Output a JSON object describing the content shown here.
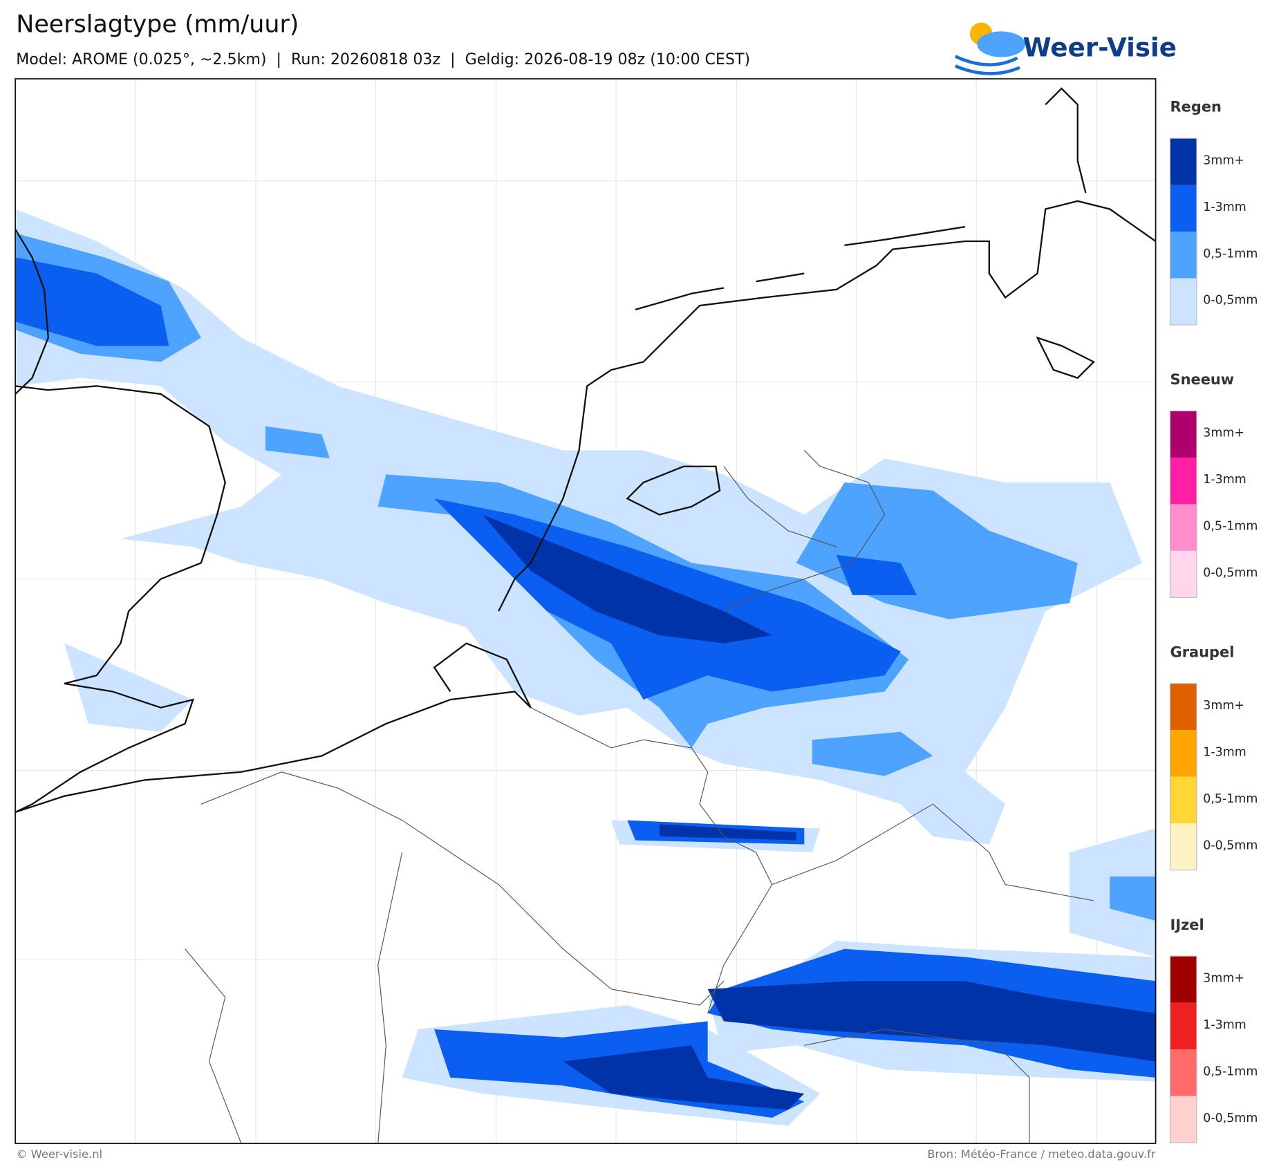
{
  "header": {
    "title": "Neerslagtype (mm/uur)",
    "subtitle": "Model: AROME (0.025°, ~2.5km)  |  Run: 20260818 03z  |  Geldig: 2026-08-19 08z (10:00 CEST)",
    "logo": "Weer-Visie"
  },
  "legend": [
    {
      "title": "Regen",
      "items": [
        {
          "label": "3mm+",
          "color": "#0033a8"
        },
        {
          "label": "1-3mm",
          "color": "#0a5ff0"
        },
        {
          "label": "0,5-1mm",
          "color": "#4da3ff"
        },
        {
          "label": "0-0,5mm",
          "color": "#cce4ff"
        }
      ]
    },
    {
      "title": "Sneeuw",
      "items": [
        {
          "label": "3mm+",
          "color": "#b0006e"
        },
        {
          "label": "1-3mm",
          "color": "#ff1fa5"
        },
        {
          "label": "0,5-1mm",
          "color": "#ff8ccc"
        },
        {
          "label": "0-0,5mm",
          "color": "#ffd6ec"
        }
      ]
    },
    {
      "title": "Graupel",
      "items": [
        {
          "label": "3mm+",
          "color": "#e06000"
        },
        {
          "label": "1-3mm",
          "color": "#ffa600"
        },
        {
          "label": "0,5-1mm",
          "color": "#ffd633"
        },
        {
          "label": "0-0,5mm",
          "color": "#fff2c2"
        }
      ]
    },
    {
      "title": "IJzel",
      "items": [
        {
          "label": "3mm+",
          "color": "#a00000"
        },
        {
          "label": "1-3mm",
          "color": "#ee2020"
        },
        {
          "label": "0,5-1mm",
          "color": "#ff6b6b"
        },
        {
          "label": "0-0,5mm",
          "color": "#ffd0d0"
        }
      ]
    }
  ],
  "footer": {
    "left": "© Weer-visie.nl",
    "right": "Bron: Météo-France / meteo.data.gouv.fr"
  }
}
